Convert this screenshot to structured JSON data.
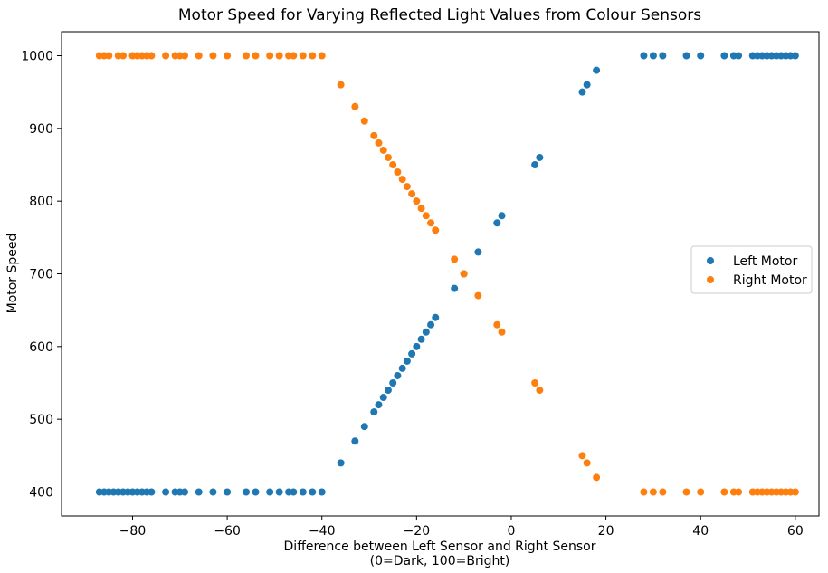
{
  "chart_data": {
    "type": "scatter",
    "title": "Motor Speed for Varying Reflected Light Values from Colour Sensors",
    "xlabel_line1": "Difference between Left Sensor and Right Sensor",
    "xlabel_line2": "(0=Dark, 100=Bright)",
    "ylabel": "Motor Speed",
    "xlim": [
      -95,
      65
    ],
    "ylim": [
      367,
      1033
    ],
    "xticks": [
      -80,
      -60,
      -40,
      -20,
      0,
      20,
      40,
      60
    ],
    "xtick_labels": [
      "−80",
      "−60",
      "−40",
      "−20",
      "0",
      "20",
      "40",
      "60"
    ],
    "yticks": [
      400,
      500,
      600,
      700,
      800,
      900,
      1000
    ],
    "ytick_labels": [
      "400",
      "500",
      "600",
      "700",
      "800",
      "900",
      "1000"
    ],
    "grid": false,
    "legend": "center-right",
    "series": [
      {
        "name": "Left Motor",
        "color": "#1f77b4",
        "points": [
          [
            -87,
            400
          ],
          [
            -86,
            400
          ],
          [
            -85,
            400
          ],
          [
            -84,
            400
          ],
          [
            -83,
            400
          ],
          [
            -82,
            400
          ],
          [
            -81,
            400
          ],
          [
            -80,
            400
          ],
          [
            -79,
            400
          ],
          [
            -78,
            400
          ],
          [
            -77,
            400
          ],
          [
            -76,
            400
          ],
          [
            -73,
            400
          ],
          [
            -71,
            400
          ],
          [
            -70,
            400
          ],
          [
            -69,
            400
          ],
          [
            -66,
            400
          ],
          [
            -63,
            400
          ],
          [
            -60,
            400
          ],
          [
            -56,
            400
          ],
          [
            -54,
            400
          ],
          [
            -51,
            400
          ],
          [
            -49,
            400
          ],
          [
            -47,
            400
          ],
          [
            -46,
            400
          ],
          [
            -44,
            400
          ],
          [
            -42,
            400
          ],
          [
            -40,
            400
          ],
          [
            -36,
            440
          ],
          [
            -33,
            470
          ],
          [
            -31,
            490
          ],
          [
            -29,
            510
          ],
          [
            -28,
            520
          ],
          [
            -27,
            530
          ],
          [
            -26,
            540
          ],
          [
            -25,
            550
          ],
          [
            -24,
            560
          ],
          [
            -23,
            570
          ],
          [
            -22,
            580
          ],
          [
            -21,
            590
          ],
          [
            -20,
            600
          ],
          [
            -19,
            610
          ],
          [
            -18,
            620
          ],
          [
            -17,
            630
          ],
          [
            -16,
            640
          ],
          [
            -12,
            680
          ],
          [
            -10,
            700
          ],
          [
            -7,
            730
          ],
          [
            -3,
            770
          ],
          [
            -2,
            780
          ],
          [
            5,
            850
          ],
          [
            6,
            860
          ],
          [
            15,
            950
          ],
          [
            16,
            960
          ],
          [
            18,
            980
          ],
          [
            28,
            1000
          ],
          [
            30,
            1000
          ],
          [
            32,
            1000
          ],
          [
            37,
            1000
          ],
          [
            40,
            1000
          ],
          [
            45,
            1000
          ],
          [
            47,
            1000
          ],
          [
            48,
            1000
          ],
          [
            51,
            1000
          ],
          [
            52,
            1000
          ],
          [
            53,
            1000
          ],
          [
            54,
            1000
          ],
          [
            55,
            1000
          ],
          [
            56,
            1000
          ],
          [
            57,
            1000
          ],
          [
            58,
            1000
          ],
          [
            59,
            1000
          ],
          [
            60,
            1000
          ]
        ]
      },
      {
        "name": "Right Motor",
        "color": "#ff7f0e",
        "points": [
          [
            -87,
            1000
          ],
          [
            -86,
            1000
          ],
          [
            -85,
            1000
          ],
          [
            -83,
            1000
          ],
          [
            -82,
            1000
          ],
          [
            -80,
            1000
          ],
          [
            -79,
            1000
          ],
          [
            -78,
            1000
          ],
          [
            -77,
            1000
          ],
          [
            -76,
            1000
          ],
          [
            -73,
            1000
          ],
          [
            -71,
            1000
          ],
          [
            -70,
            1000
          ],
          [
            -69,
            1000
          ],
          [
            -66,
            1000
          ],
          [
            -63,
            1000
          ],
          [
            -60,
            1000
          ],
          [
            -56,
            1000
          ],
          [
            -54,
            1000
          ],
          [
            -51,
            1000
          ],
          [
            -49,
            1000
          ],
          [
            -47,
            1000
          ],
          [
            -46,
            1000
          ],
          [
            -44,
            1000
          ],
          [
            -42,
            1000
          ],
          [
            -40,
            1000
          ],
          [
            -36,
            960
          ],
          [
            -33,
            930
          ],
          [
            -31,
            910
          ],
          [
            -29,
            890
          ],
          [
            -28,
            880
          ],
          [
            -27,
            870
          ],
          [
            -26,
            860
          ],
          [
            -25,
            850
          ],
          [
            -24,
            840
          ],
          [
            -23,
            830
          ],
          [
            -22,
            820
          ],
          [
            -21,
            810
          ],
          [
            -20,
            800
          ],
          [
            -19,
            790
          ],
          [
            -18,
            780
          ],
          [
            -17,
            770
          ],
          [
            -16,
            760
          ],
          [
            -12,
            720
          ],
          [
            -10,
            700
          ],
          [
            -7,
            670
          ],
          [
            -3,
            630
          ],
          [
            -2,
            620
          ],
          [
            5,
            550
          ],
          [
            6,
            540
          ],
          [
            15,
            450
          ],
          [
            16,
            440
          ],
          [
            18,
            420
          ],
          [
            28,
            400
          ],
          [
            30,
            400
          ],
          [
            32,
            400
          ],
          [
            37,
            400
          ],
          [
            40,
            400
          ],
          [
            45,
            400
          ],
          [
            47,
            400
          ],
          [
            48,
            400
          ],
          [
            51,
            400
          ],
          [
            52,
            400
          ],
          [
            53,
            400
          ],
          [
            54,
            400
          ],
          [
            55,
            400
          ],
          [
            56,
            400
          ],
          [
            57,
            400
          ],
          [
            58,
            400
          ],
          [
            59,
            400
          ],
          [
            60,
            400
          ]
        ]
      }
    ]
  }
}
